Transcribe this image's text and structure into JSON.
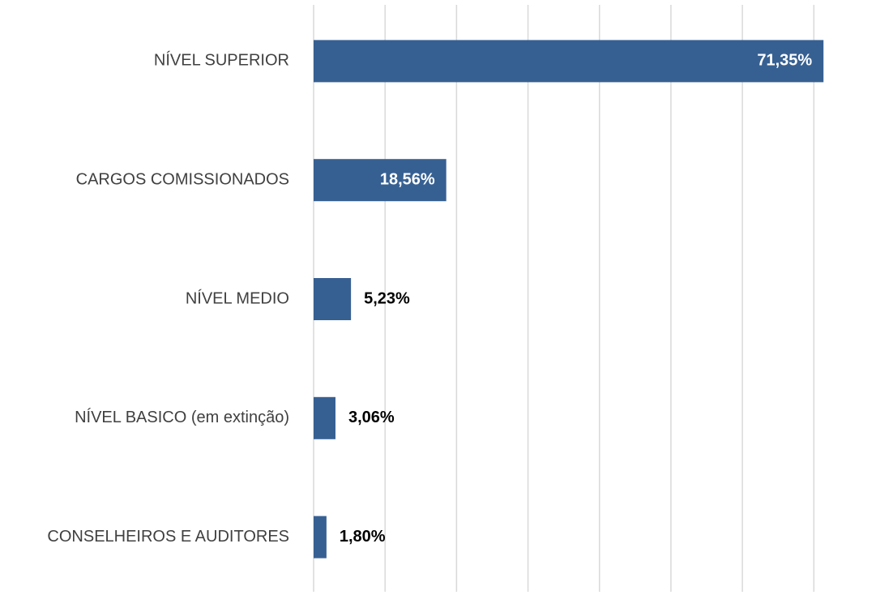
{
  "chart_data": {
    "type": "barh",
    "categories": [
      "NÍVEL SUPERIOR",
      "CARGOS COMISSIONADOS",
      "NÍVEL MEDIO",
      "NÍVEL BASICO (em extinção)",
      "CONSELHEIROS E AUDITORES"
    ],
    "values": [
      71.35,
      18.56,
      5.23,
      3.06,
      1.8
    ],
    "value_labels": [
      "71,35%",
      "18,56%",
      "5,23%",
      "3,06%",
      "1,80%"
    ],
    "color": "#376092",
    "xlim": [
      0,
      72.8
    ],
    "xticks": [
      0,
      10,
      20,
      30,
      40,
      50,
      60,
      70
    ],
    "grid": true
  }
}
